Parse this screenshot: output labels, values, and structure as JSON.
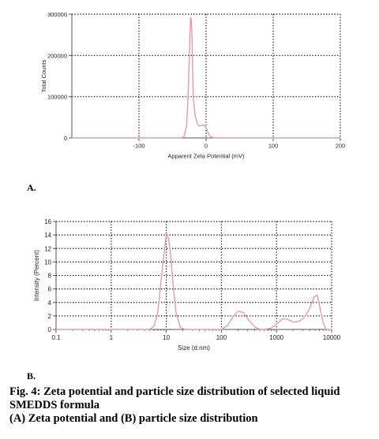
{
  "chart_data": [
    {
      "type": "line",
      "title": "",
      "xlabel": "Apparent Zeta Potential (mV)",
      "ylabel": "Total Counts",
      "xlim": [
        -200,
        200
      ],
      "ylim": [
        0,
        300000
      ],
      "xticks": [
        -100,
        0,
        100,
        200
      ],
      "xtick_labels": [
        "-100",
        "0",
        "100",
        "200"
      ],
      "yticks": [
        0,
        100000,
        200000,
        300000
      ],
      "ytick_labels": [
        "0",
        "100000",
        "200000",
        "300000"
      ],
      "grid": true,
      "series": [
        {
          "color": "#d9a0a8",
          "x": [
            -200,
            -60,
            -40,
            -33,
            -29,
            -27,
            -25,
            -24,
            -23,
            -22,
            -21,
            -20,
            -19,
            -17,
            -15,
            -13,
            -11,
            -9,
            -7,
            -5,
            -3,
            -1,
            0,
            2,
            4,
            6,
            10,
            20,
            60,
            200
          ],
          "y": [
            0,
            0,
            0,
            2000,
            30000,
            95000,
            195000,
            260000,
            292000,
            285000,
            240000,
            165000,
            100000,
            62000,
            45000,
            35000,
            30000,
            29000,
            30000,
            32000,
            31000,
            27000,
            24000,
            17000,
            9000,
            4000,
            1000,
            0,
            0,
            0
          ]
        }
      ]
    },
    {
      "type": "line",
      "title": "",
      "xlabel": "Size (d.nm)",
      "ylabel": "Intensity (Percent)",
      "xscale": "log",
      "xlim": [
        0.1,
        10000
      ],
      "ylim": [
        0,
        16
      ],
      "xticks": [
        0.1,
        1,
        10,
        100,
        1000,
        10000
      ],
      "xtick_labels": [
        "0.1",
        "1",
        "10",
        "100",
        "1000",
        "10000"
      ],
      "yticks": [
        0,
        2,
        4,
        6,
        8,
        10,
        12,
        14,
        16
      ],
      "ytick_labels": [
        "0",
        "2",
        "4",
        "6",
        "8",
        "10",
        "12",
        "14",
        "16"
      ],
      "grid": true,
      "series": [
        {
          "color": "#d9a0a8",
          "x": [
            0.1,
            5,
            6,
            7,
            8,
            9,
            10,
            11,
            12,
            13,
            15,
            18,
            22,
            100,
            130,
            160,
            200,
            250,
            320,
            400,
            500,
            600,
            800,
            1000,
            1300,
            1600,
            2000,
            2600,
            3200,
            4000,
            4800,
            5500,
            6000,
            7000,
            8000,
            10000
          ],
          "y": [
            0,
            0,
            0.5,
            2.5,
            7,
            11,
            14,
            13.5,
            11,
            7.5,
            2.5,
            0.3,
            0,
            0,
            0.6,
            1.8,
            2.7,
            2.5,
            1.3,
            0.4,
            0,
            0,
            0.2,
            0.8,
            1.6,
            1.5,
            1.1,
            1.2,
            1.8,
            3.1,
            4.8,
            5.1,
            3.6,
            1.0,
            0,
            0
          ]
        }
      ]
    }
  ],
  "panels": {
    "a": "A.",
    "b": "B."
  },
  "caption": {
    "line1": "Fig. 4: Zeta potential and particle size distribution of selected liquid SMEDDS formula",
    "line2": "(A) Zeta potential and (B) particle size distribution"
  }
}
